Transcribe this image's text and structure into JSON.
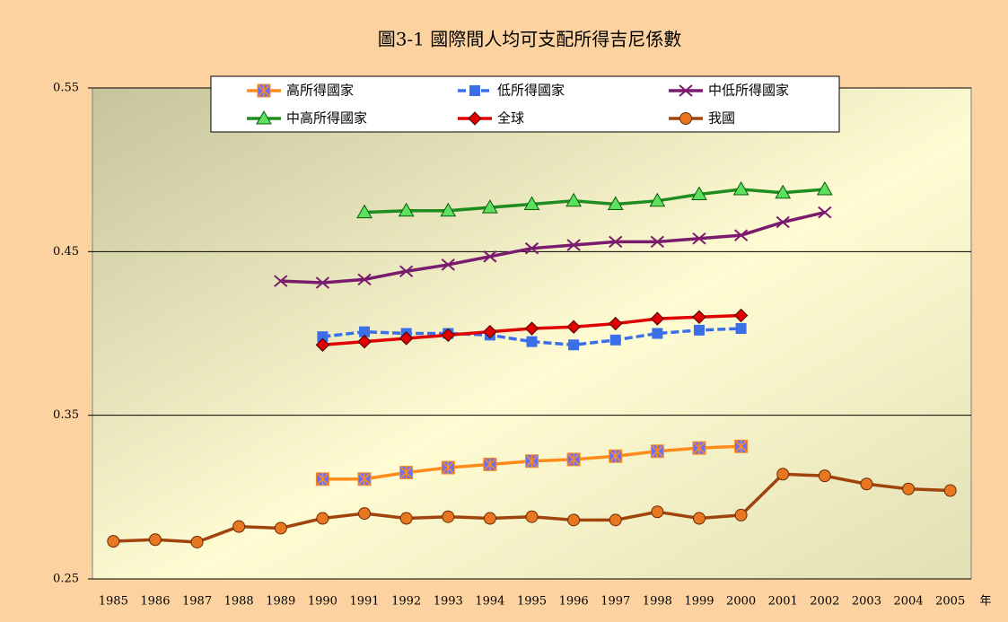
{
  "chart_data": {
    "type": "line",
    "title": "圖3-1 國際間人均可支配所得吉尼係數",
    "x_label": "年",
    "categories": [
      "1985",
      "1986",
      "1987",
      "1988",
      "1989",
      "1990",
      "1991",
      "1992",
      "1993",
      "1994",
      "1995",
      "1996",
      "1997",
      "1998",
      "1999",
      "2000",
      "2001",
      "2002",
      "2003",
      "2004",
      "2005"
    ],
    "ylim": [
      0.25,
      0.55
    ],
    "yticks": [
      0.25,
      0.35,
      0.45,
      0.55
    ],
    "grid": true,
    "legend": "top",
    "series": [
      {
        "name": "高所得國家",
        "color": "#ff8c1a",
        "marker": "x-square",
        "marker_color": "#6f6ff2",
        "dash": false,
        "values": [
          null,
          null,
          null,
          null,
          null,
          0.311,
          0.311,
          0.315,
          0.318,
          0.32,
          0.322,
          0.323,
          0.325,
          0.328,
          0.33,
          0.331,
          null,
          null,
          null,
          null,
          null
        ]
      },
      {
        "name": "低所得國家",
        "color": "#3a6fe8",
        "marker": "square",
        "marker_color": "#3a6fe8",
        "dash": true,
        "values": [
          null,
          null,
          null,
          null,
          null,
          0.398,
          0.401,
          0.4,
          0.4,
          0.399,
          0.395,
          0.393,
          0.396,
          0.4,
          0.402,
          0.403,
          null,
          null,
          null,
          null,
          null
        ]
      },
      {
        "name": "中低所得國家",
        "color": "#7b1b6e",
        "marker": "x",
        "marker_color": "#7b1b6e",
        "dash": false,
        "values": [
          null,
          null,
          null,
          null,
          0.432,
          0.431,
          0.433,
          0.438,
          0.442,
          0.447,
          0.452,
          0.454,
          0.456,
          0.456,
          0.458,
          0.46,
          0.468,
          0.474,
          null,
          null,
          null
        ]
      },
      {
        "name": "中高所得國家",
        "color": "#1f8c1f",
        "marker": "triangle",
        "marker_color": "#5de05d",
        "dash": false,
        "values": [
          null,
          null,
          null,
          null,
          null,
          null,
          0.474,
          0.475,
          0.475,
          0.477,
          0.479,
          0.481,
          0.479,
          0.481,
          0.485,
          0.488,
          0.486,
          0.488,
          null,
          null,
          null
        ]
      },
      {
        "name": "全球",
        "color": "#e00000",
        "marker": "diamond",
        "marker_color": "#e00000",
        "dash": false,
        "values": [
          null,
          null,
          null,
          null,
          null,
          0.393,
          0.395,
          0.397,
          0.399,
          0.401,
          0.403,
          0.404,
          0.406,
          0.409,
          0.41,
          0.411,
          null,
          null,
          null,
          null,
          null
        ]
      },
      {
        "name": "我國",
        "color": "#a0440c",
        "marker": "circle",
        "marker_color": "#e87722",
        "dash": false,
        "values": [
          0.273,
          0.274,
          0.2725,
          0.282,
          0.281,
          0.287,
          0.29,
          0.287,
          0.288,
          0.287,
          0.288,
          0.286,
          0.286,
          0.291,
          0.287,
          0.289,
          0.314,
          0.313,
          0.308,
          0.305,
          0.304
        ]
      }
    ]
  }
}
